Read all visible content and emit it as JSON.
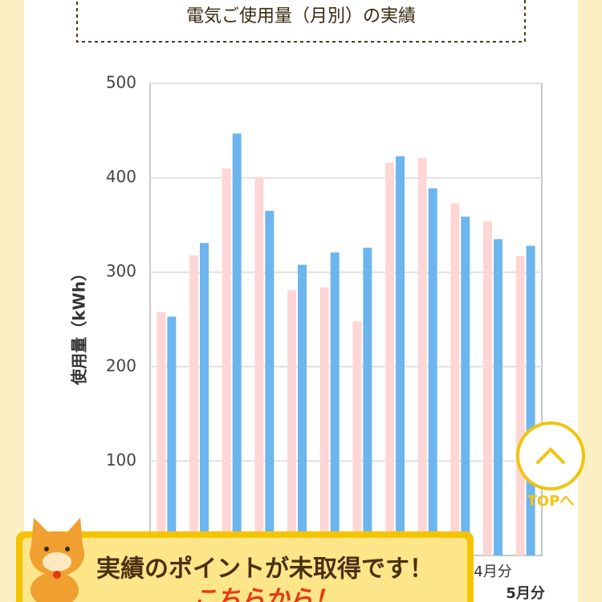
{
  "chart_data": {
    "type": "bar",
    "title": "電気ご使用量（月別）の実績",
    "y_label": "使用量（kWh）",
    "categories": [
      null,
      null,
      null,
      null,
      null,
      null,
      null,
      null,
      null,
      null,
      "4月分",
      "5月分"
    ],
    "series": [
      {
        "color": "#ffd6d6",
        "values": [
          258,
          318,
          410,
          401,
          281,
          284,
          248,
          416,
          421,
          373,
          354,
          317
        ]
      },
      {
        "color": "#6db5ee",
        "values": [
          253,
          331,
          447,
          365,
          308,
          321,
          326,
          423,
          389,
          359,
          335,
          328
        ]
      }
    ],
    "ylim": [
      0,
      500
    ],
    "yticks": [
      100,
      200,
      300,
      400,
      500
    ],
    "grid": true
  },
  "top_button": {
    "label": "TOPへ"
  },
  "banner": {
    "message": "実績のポイントが未取得です！",
    "link": "こちらから！"
  }
}
